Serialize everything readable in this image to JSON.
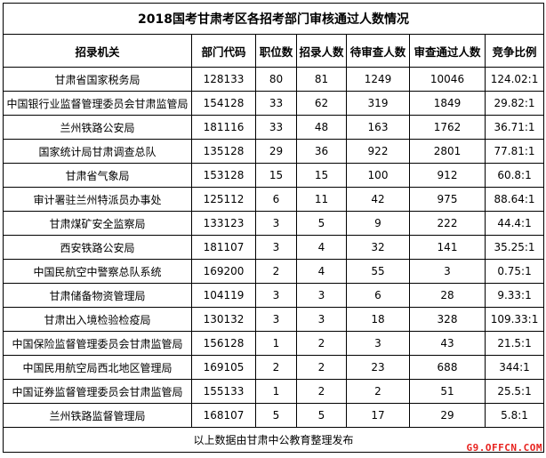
{
  "title": "2018国考甘肃考区各招考部门审核通过人数情况",
  "headers": [
    "招录机关",
    "部门代码",
    "职位数",
    "招录人数",
    "待审查人数",
    "审查通过人数",
    "竞争比例"
  ],
  "rows": [
    [
      "甘肃省国家税务局",
      "128133",
      "80",
      "81",
      "1249",
      "10046",
      "124.02:1"
    ],
    [
      "中国银行业监督管理委员会甘肃监管局",
      "154128",
      "33",
      "62",
      "319",
      "1849",
      "29.82:1"
    ],
    [
      "兰州铁路公安局",
      "181116",
      "33",
      "48",
      "163",
      "1762",
      "36.71:1"
    ],
    [
      "国家统计局甘肃调查总队",
      "135128",
      "29",
      "36",
      "922",
      "2801",
      "77.81:1"
    ],
    [
      "甘肃省气象局",
      "153128",
      "15",
      "15",
      "100",
      "912",
      "60.8:1"
    ],
    [
      "审计署驻兰州特派员办事处",
      "125112",
      "6",
      "11",
      "42",
      "975",
      "88.64:1"
    ],
    [
      "甘肃煤矿安全监察局",
      "133123",
      "3",
      "5",
      "9",
      "222",
      "44.4:1"
    ],
    [
      "西安铁路公安局",
      "181107",
      "3",
      "4",
      "32",
      "141",
      "35.25:1"
    ],
    [
      "中国民航空中警察总队系统",
      "169200",
      "2",
      "4",
      "55",
      "3",
      "0.75:1"
    ],
    [
      "甘肃储备物资管理局",
      "104119",
      "3",
      "3",
      "6",
      "28",
      "9.33:1"
    ],
    [
      "甘肃出入境检验检疫局",
      "130132",
      "3",
      "3",
      "18",
      "328",
      "109.33:1"
    ],
    [
      "中国保险监督管理委员会甘肃监管局",
      "156128",
      "1",
      "2",
      "3",
      "43",
      "21.5:1"
    ],
    [
      "中国民用航空局西北地区管理局",
      "169105",
      "2",
      "2",
      "23",
      "688",
      "344:1"
    ],
    [
      "中国证券监督管理委员会甘肃监管局",
      "155133",
      "1",
      "2",
      "2",
      "51",
      "25.5:1"
    ],
    [
      "兰州铁路监督管理局",
      "168107",
      "5",
      "5",
      "17",
      "29",
      "5.8:1"
    ]
  ],
  "footer": "以上数据由甘肃中公教育整理发布",
  "watermark": "G9.OFFCN.COM",
  "watermark_color": "#e8231f"
}
